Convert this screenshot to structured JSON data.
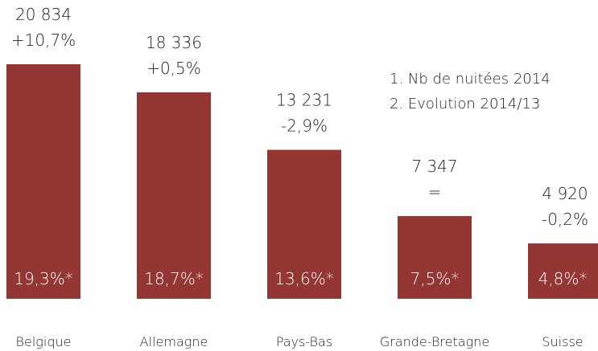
{
  "chart_data": {
    "type": "bar",
    "categories": [
      "Belgique",
      "Allemagne",
      "Pays-Bas",
      "Grande-Bretagne",
      "Suisse"
    ],
    "values": [
      20834,
      18336,
      13231,
      7347,
      4920
    ],
    "value_labels": [
      "20 834",
      "18 336",
      "13 231",
      "7 347",
      "4 920"
    ],
    "evolution": [
      "+10,7%",
      "+0,5%",
      "-2,9%",
      "=",
      "-0,2%"
    ],
    "shares": [
      "19,3%*",
      "18,7%*",
      "13,6%*",
      "7,5%*",
      "4,8%*"
    ],
    "legend": [
      "1. Nb de nuitées 2014",
      "2. Evolution 2014/13"
    ],
    "color": "#943634"
  }
}
